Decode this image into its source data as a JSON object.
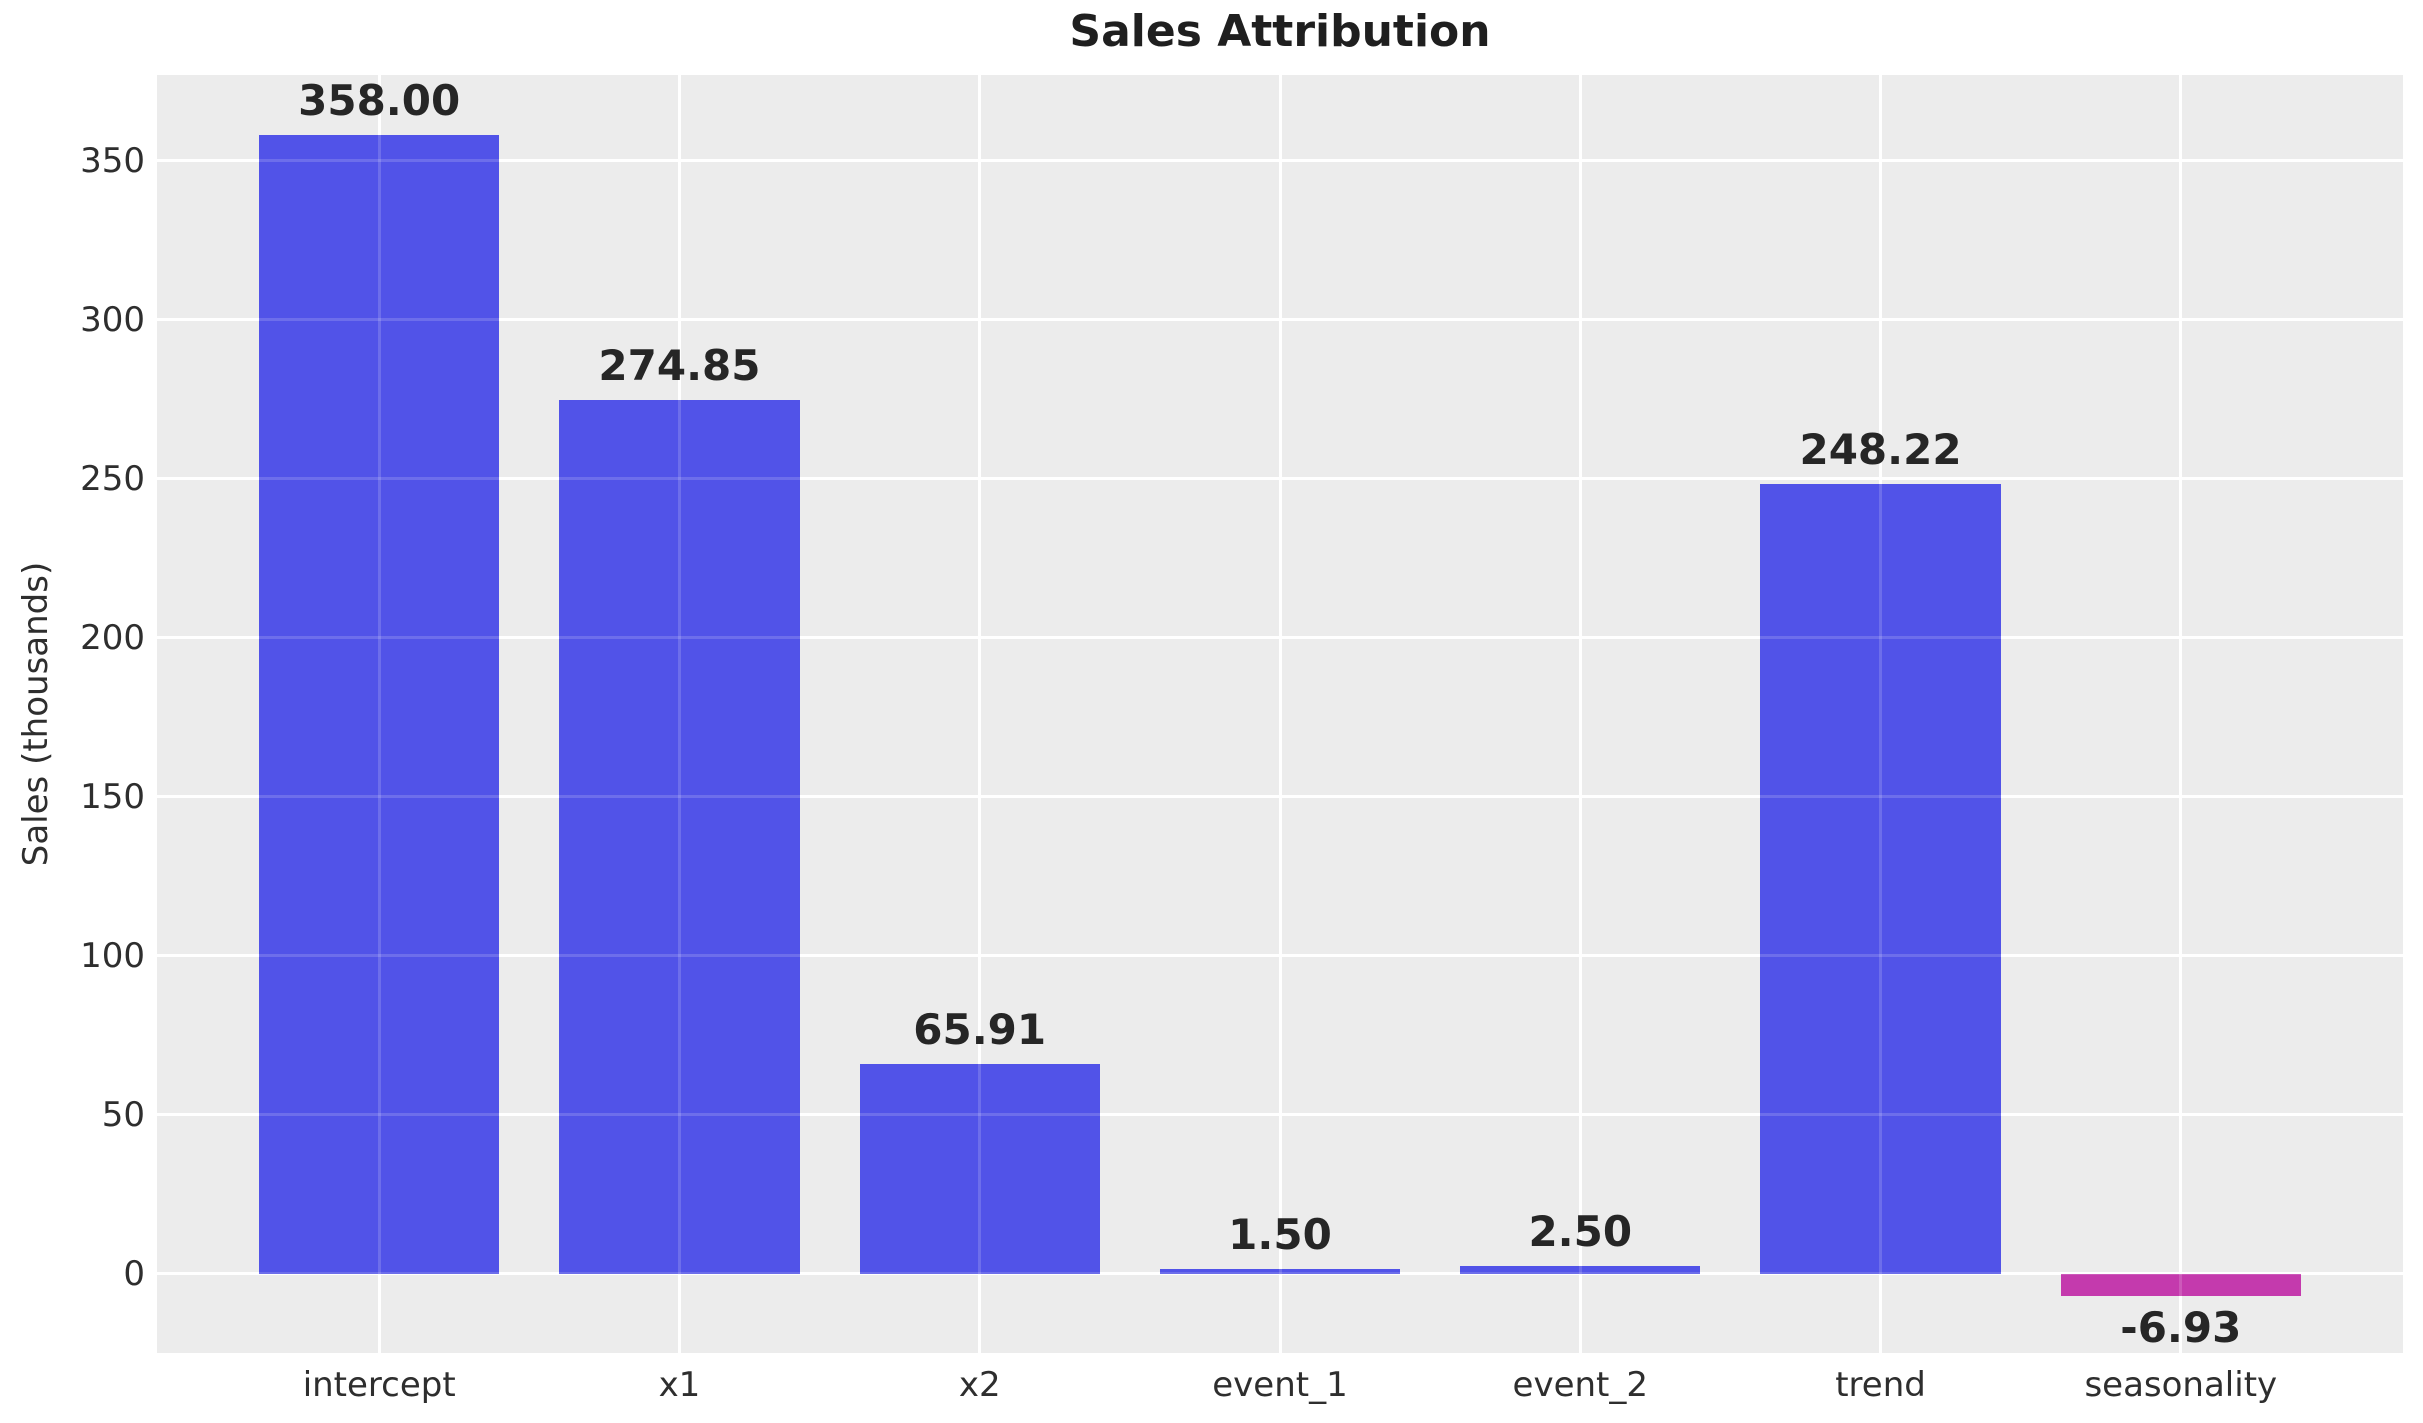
{
  "chart_data": {
    "type": "bar",
    "title": "Sales Attribution",
    "xlabel": "",
    "ylabel": "Sales (thousands)",
    "categories": [
      "intercept",
      "x1",
      "x2",
      "event_1",
      "event_2",
      "trend",
      "seasonality"
    ],
    "values": [
      358.0,
      274.85,
      65.91,
      1.5,
      2.5,
      248.22,
      -6.93
    ],
    "value_labels": [
      "358.00",
      "274.85",
      "65.91",
      "1.50",
      "2.50",
      "248.22",
      "-6.93"
    ],
    "yticks": [
      0,
      50,
      100,
      150,
      200,
      250,
      300,
      350
    ],
    "ytick_labels": [
      "0",
      "50",
      "100",
      "150",
      "200",
      "250",
      "300",
      "350"
    ],
    "ylim": [
      -25,
      377
    ],
    "xlim": [
      -0.74,
      6.74
    ],
    "bar_width": 0.8,
    "grid": true,
    "legend": false,
    "colors": {
      "positive_bar": "#5153E8",
      "negative_bar": "#C43AAD",
      "plot_background": "#ECECEC",
      "gridline": "#FFFFFF",
      "gridline_overlay": "rgba(255,255,255,0.16)",
      "tick_text": "#2E2E2E",
      "value_text": "#262626",
      "title_text": "#1F1F1F",
      "figure_background": "#FFFFFF"
    }
  }
}
